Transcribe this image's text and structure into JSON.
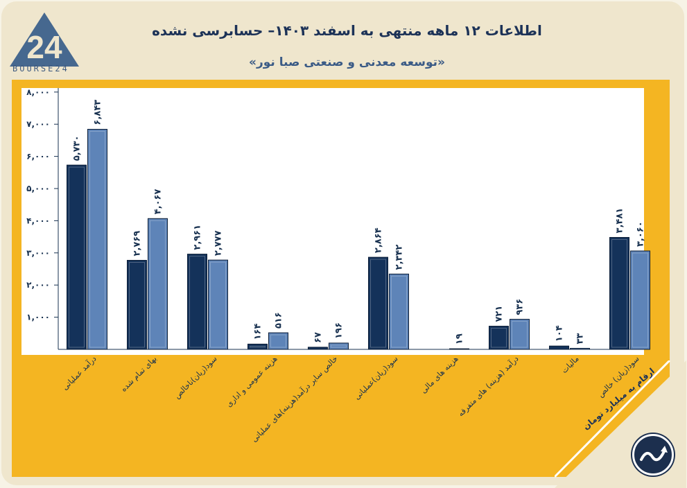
{
  "header": {
    "title": "اطلاعات ۱۲ ماهه منتهی به اسفند ۱۴۰۳– حسابرسی نشده",
    "subtitle": "«توسعه معدنی و صنعتی صبا نور»",
    "brand": "BOURSE24",
    "logo_text": "24"
  },
  "note": "ارقام به میلیارد تومان",
  "colors": {
    "series_1": "#14325a",
    "series_2": "#5e84b8",
    "frame": "#f4b522",
    "background": "#efe6cd",
    "text": "#17304f"
  },
  "chart_data": {
    "type": "bar",
    "title": "اطلاعات ۱۲ ماهه منتهی به اسفند ۱۴۰۳– حسابرسی نشده",
    "xlabel": "",
    "ylabel": "",
    "ylim": [
      0,
      8000
    ],
    "yticks": [
      1000,
      2000,
      3000,
      4000,
      5000,
      6000,
      7000,
      8000
    ],
    "ytick_labels": [
      "۱,۰۰۰",
      "۲,۰۰۰",
      "۳,۰۰۰",
      "۴,۰۰۰",
      "۵,۰۰۰",
      "۶,۰۰۰",
      "۷,۰۰۰",
      "۸,۰۰۰"
    ],
    "grid": false,
    "categories": [
      "درآمد عملیاتی",
      "بهای تمام شده",
      "سود(زیان)ناخالص",
      "هزینه عمومی و اداری",
      "خالص سایر درآمد(هزینه)های عملیاتی",
      "سود(زیان)عملیاتی",
      "هزینه های مالی",
      "درآمد (هزینه) های متفرقه",
      "مالیات",
      "سود(زیان) خالص"
    ],
    "series": [
      {
        "name": "series_1",
        "values": [
          5730,
          2769,
          2961,
          164,
          67,
          2864,
          0,
          721,
          104,
          3481
        ],
        "labels": [
          "۵,۷۳۰",
          "۲,۷۶۹",
          "۲,۹۶۱",
          "۱۶۴",
          "۶۷",
          "۲,۸۶۴",
          "",
          "۷۲۱",
          "۱۰۴",
          "۳,۴۸۱"
        ]
      },
      {
        "name": "series_2",
        "values": [
          6843,
          4067,
          2777,
          516,
          196,
          2342,
          19,
          936,
          33,
          3060
        ],
        "labels": [
          "۶,۸۴۳",
          "۴,۰۶۷",
          "۲,۷۷۷",
          "۵۱۶",
          "۱۹۶",
          "۲,۳۴۲",
          "۱۹",
          "۹۳۶",
          "۳۳",
          "۳,۰۶۰"
        ]
      }
    ]
  }
}
